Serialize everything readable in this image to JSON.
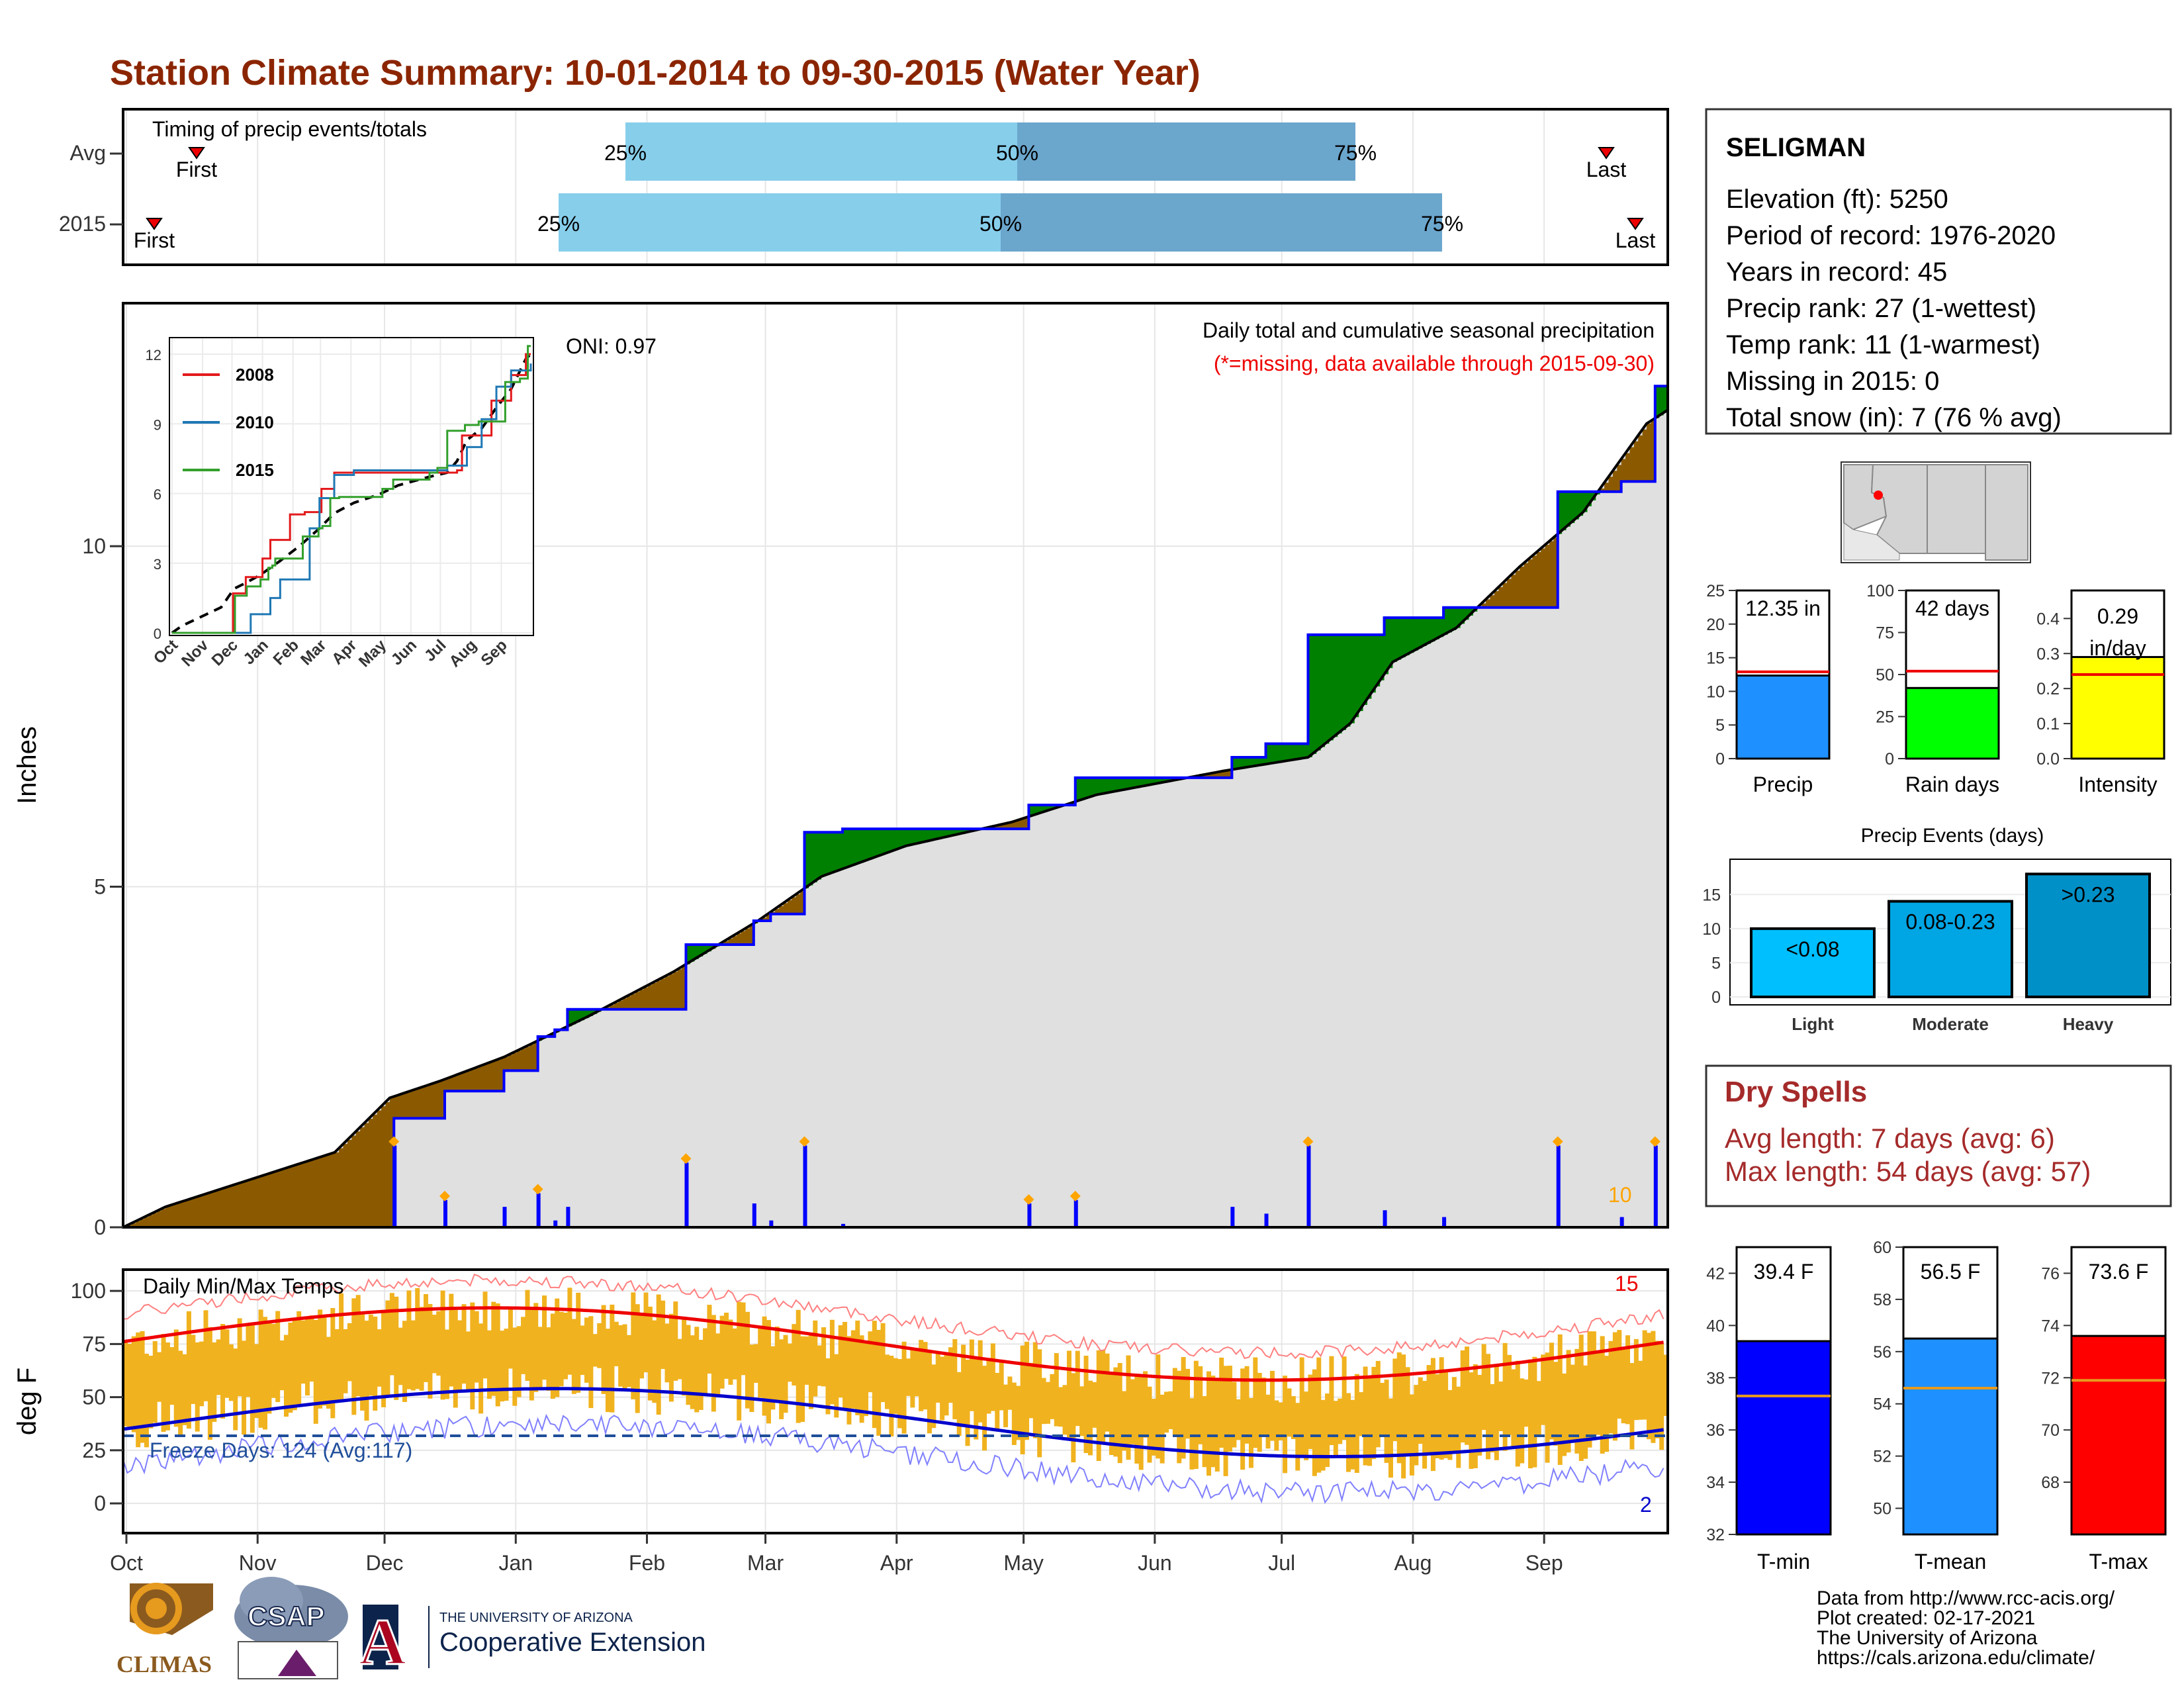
{
  "title": "Station Climate Summary: 10-01-2014 to 09-30-2015 (Water Year)",
  "timing": {
    "label": "Timing of precip events/totals",
    "rows": [
      {
        "name": "Avg",
        "first_label": "First",
        "last_label": "Last",
        "p25": "25%",
        "p50": "50%",
        "p75": "75%"
      },
      {
        "name": "2015",
        "first_label": "First",
        "last_label": "Last",
        "p25": "25%",
        "p50": "50%",
        "p75": "75%"
      }
    ]
  },
  "precip_panel": {
    "annotation_1": "Daily total and cumulative seasonal precipitation",
    "annotation_2": "(*=missing, data available through 2015-09-30)",
    "oni": "ONI: 0.97",
    "ylabel": "Inches",
    "yticks": [
      "0",
      "5",
      "10"
    ],
    "count_label": "10",
    "colors": {
      "above": "#008000",
      "below": "#8b5a00",
      "normal": "#e0e0e0",
      "daily": "#0000ff",
      "marker": "#ffa500"
    }
  },
  "inset": {
    "yticks": [
      "0",
      "3",
      "6",
      "9",
      "12"
    ],
    "xticks": [
      "Oct",
      "Nov",
      "Dec",
      "Jan",
      "Feb",
      "Mar",
      "Apr",
      "May",
      "Jun",
      "Jul",
      "Aug",
      "Sep"
    ],
    "legend": [
      {
        "name": "2008",
        "color": "#e31a1c"
      },
      {
        "name": "2010",
        "color": "#1f78b4"
      },
      {
        "name": "2015",
        "color": "#33a02c"
      }
    ]
  },
  "temp_panel": {
    "label": "Daily Min/Max Temps",
    "freeze": "Freeze Days: 124 (Avg:117)",
    "ylabel": "deg F",
    "yticks": [
      "0",
      "25",
      "50",
      "75",
      "100"
    ],
    "count_hot": "15",
    "count_cold": "2"
  },
  "months": [
    "Oct",
    "Nov",
    "Dec",
    "Jan",
    "Feb",
    "Mar",
    "Apr",
    "May",
    "Jun",
    "Jul",
    "Aug",
    "Sep"
  ],
  "station": {
    "name": "SELIGMAN",
    "lines": [
      "Elevation (ft): 5250",
      "Period of record: 1976-2020",
      "Years in record: 45",
      "Precip rank: 27 (1-wettest)",
      "Temp rank: 11 (1-warmest)",
      "Missing in 2015: 0",
      "Total snow (in): 7 (76 % avg)"
    ]
  },
  "mini_bars": [
    {
      "label": "Precip",
      "value_text": "12.35 in",
      "value": 12.35,
      "avg": 12.9,
      "ymax": 25,
      "ticks": [
        "0",
        "5",
        "10",
        "15",
        "20",
        "25"
      ],
      "color": "#1e90ff"
    },
    {
      "label": "Rain days",
      "value_text": "42 days",
      "value": 42,
      "avg": 52,
      "ymax": 100,
      "ticks": [
        "0",
        "25",
        "50",
        "75",
        "100"
      ],
      "color": "#00ff00"
    },
    {
      "label": "Intensity",
      "value_text": "0.29 in/day",
      "value": 0.29,
      "avg": 0.24,
      "ymax": 0.48,
      "ticks": [
        "0.0",
        "0.1",
        "0.2",
        "0.3",
        "0.4"
      ],
      "color": "#ffff00"
    }
  ],
  "events": {
    "title": "Precip Events (days)",
    "ticks": [
      "0",
      "5",
      "10",
      "15"
    ],
    "bars": [
      {
        "label": "Light",
        "text": "<0.08",
        "value": 10,
        "color": "#00bfff"
      },
      {
        "label": "Moderate",
        "text": "0.08-0.23",
        "value": 14,
        "color": "#00a5e3"
      },
      {
        "label": "Heavy",
        "text": ">0.23",
        "value": 18,
        "color": "#0090c8"
      }
    ]
  },
  "dry_spells": {
    "title": "Dry Spells",
    "avg_len": "Avg length: 7 days (avg: 6)",
    "max_len": "Max length: 54 days (avg: 57)"
  },
  "temp_bars": [
    {
      "label": "T-min",
      "value_text": "39.4 F",
      "value": 39.4,
      "avg": 37.3,
      "ymin": 32,
      "ymax": 43,
      "ticks": [
        "32",
        "34",
        "36",
        "38",
        "40",
        "42"
      ],
      "color": "#0000ff"
    },
    {
      "label": "T-mean",
      "value_text": "56.5 F",
      "value": 56.5,
      "avg": 54.6,
      "ymin": 49,
      "ymax": 60,
      "ticks": [
        "50",
        "52",
        "54",
        "56",
        "58",
        "60"
      ],
      "color": "#1e90ff"
    },
    {
      "label": "T-max",
      "value_text": "73.6 F",
      "value": 73.6,
      "avg": 71.9,
      "ymin": 66,
      "ymax": 77,
      "ticks": [
        "68",
        "70",
        "72",
        "74",
        "76"
      ],
      "color": "#ff0000"
    }
  ],
  "credits": [
    "Data from http://www.rcc-acis.org/",
    "Plot created: 02-17-2021",
    "The University of Arizona",
    "https://cals.arizona.edu/climate/"
  ],
  "logos": {
    "climas": "CLIMAS",
    "csap": "CSAP",
    "ua_line1": "THE UNIVERSITY OF ARIZONA",
    "ua_line2": "Cooperative Extension",
    "ua_letter": "A"
  },
  "chart_data": {
    "type": "area",
    "title": "Station Climate Summary: 10-01-2014 to 09-30-2015 (Water Year)",
    "xlabel": "",
    "ylabel": "Inches",
    "ylim": [
      0,
      13.5
    ],
    "x_domain_months": [
      "Oct",
      "Nov",
      "Dec",
      "Jan",
      "Feb",
      "Mar",
      "Apr",
      "May",
      "Jun",
      "Jul",
      "Aug",
      "Sep"
    ],
    "series": [
      {
        "name": "2015 cumulative",
        "x_day": [
          0,
          63,
          64,
          72,
          76,
          90,
          92,
          98,
          102,
          105,
          123,
          133,
          136,
          149,
          153,
          161,
          166,
          170,
          200,
          214,
          225,
          242,
          262,
          268,
          270,
          280,
          298,
          302,
          312,
          339,
          346,
          354,
          362,
          365
        ],
        "y": [
          0,
          0,
          1.6,
          1.6,
          2.0,
          2.3,
          2.3,
          2.8,
          2.9,
          3.2,
          3.2,
          4.15,
          4.15,
          4.5,
          4.6,
          5.8,
          5.8,
          5.85,
          5.85,
          6.2,
          6.6,
          6.6,
          6.9,
          6.9,
          7.1,
          8.7,
          8.95,
          8.95,
          9.1,
          10.8,
          10.8,
          10.95,
          12.35,
          12.35
        ]
      },
      {
        "name": "normal cumulative",
        "x_day": [
          0,
          10,
          30,
          50,
          63,
          75,
          90,
          110,
          130,
          150,
          165,
          185,
          210,
          230,
          260,
          280,
          290,
          300,
          315,
          330,
          345,
          360,
          365
        ],
        "y": [
          0,
          0.3,
          0.7,
          1.1,
          1.9,
          2.15,
          2.5,
          3.1,
          3.75,
          4.5,
          5.15,
          5.6,
          5.95,
          6.35,
          6.7,
          6.9,
          7.4,
          8.3,
          8.8,
          9.7,
          10.5,
          11.8,
          12.0
        ]
      }
    ]
  }
}
